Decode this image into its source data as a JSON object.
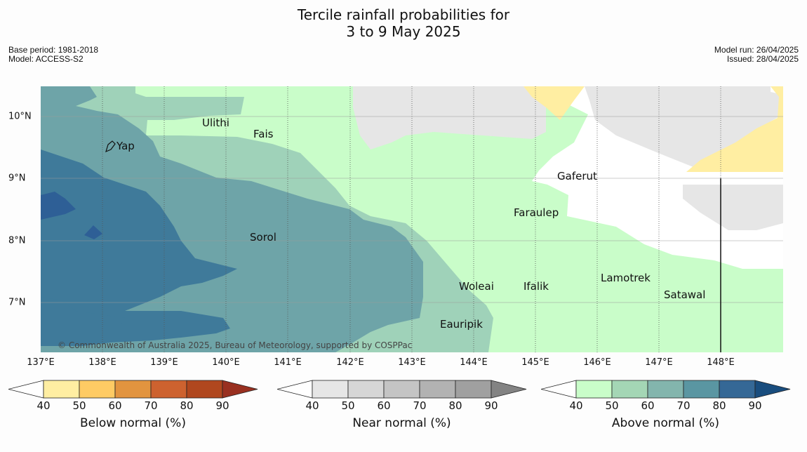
{
  "title_line1": "Tercile rainfall probabilities for",
  "title_line2": "3 to 9 May 2025",
  "meta_left": {
    "base_period": "Base period: 1981-2018",
    "model": "Model: ACCESS-S2"
  },
  "meta_right": {
    "model_run": "Model run: 26/04/2025",
    "issued": "Issued: 28/04/2025"
  },
  "x_ticks": [
    "137°E",
    "138°E",
    "139°E",
    "140°E",
    "141°E",
    "142°E",
    "143°E",
    "144°E",
    "145°E",
    "146°E",
    "147°E",
    "148°E"
  ],
  "y_ticks": [
    "10°N",
    "9°N",
    "8°N",
    "7°N"
  ],
  "places": [
    "Ulithi",
    "Fais",
    "Yap",
    "Gaferut",
    "Faraulep",
    "Sorol",
    "Lamotrek",
    "Woleai",
    "Ifalik",
    "Satawal",
    "Eauripik"
  ],
  "copyright": "© Commonwealth of Australia 2025, Bureau of Meteorology, supported by COSPPac",
  "colorbars": [
    {
      "label": "Below normal (%)",
      "ticks": [
        "40",
        "50",
        "60",
        "70",
        "80",
        "90"
      ],
      "colors": [
        "#ffffff",
        "#ffeea2",
        "#fecb64",
        "#e2943f",
        "#cd622f",
        "#b0471e",
        "#993020"
      ]
    },
    {
      "label": "Near normal (%)",
      "ticks": [
        "40",
        "50",
        "60",
        "70",
        "80",
        "90"
      ],
      "colors": [
        "#ffffff",
        "#e6e6e6",
        "#d6d6d6",
        "#c4c4c4",
        "#b2b2b2",
        "#a0a0a0",
        "#838383"
      ]
    },
    {
      "label": "Above normal (%)",
      "ticks": [
        "40",
        "50",
        "60",
        "70",
        "80",
        "90"
      ],
      "colors": [
        "#ffffff",
        "#c9fdc9",
        "#a4d6b5",
        "#83b5ad",
        "#5a96a2",
        "#356896",
        "#194d7e"
      ]
    }
  ],
  "colors": {
    "above_40_50": "#c9fdc9",
    "above_50_60": "#9fd2b9",
    "above_60_70": "#6ea4a8",
    "above_70_80": "#3f7a9a",
    "above_80_90": "#2e5f96",
    "near_40_50": "#e6e6e6",
    "below_40_50": "#ffeea2"
  }
}
